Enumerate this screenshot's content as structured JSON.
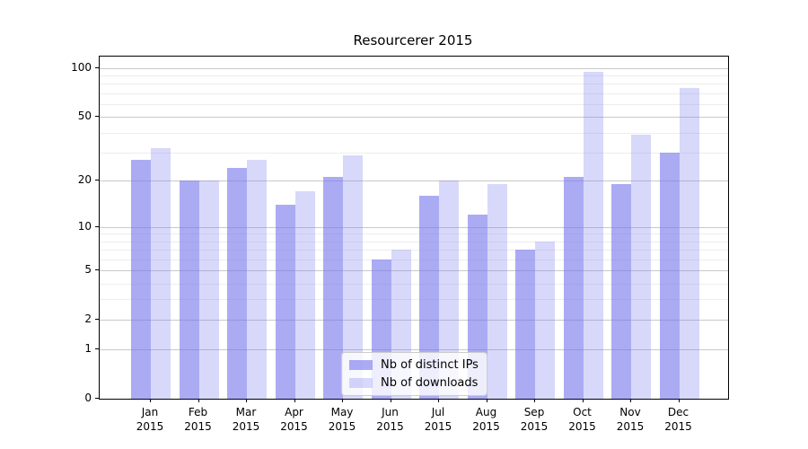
{
  "chart_data": {
    "type": "bar",
    "title": "Resourcerer 2015",
    "months": [
      "Jan",
      "Feb",
      "Mar",
      "Apr",
      "May",
      "Jun",
      "Jul",
      "Aug",
      "Sep",
      "Oct",
      "Nov",
      "Dec"
    ],
    "year": "2015",
    "categories": [
      "Jan 2015",
      "Feb 2015",
      "Mar 2015",
      "Apr 2015",
      "May 2015",
      "Jun 2015",
      "Jul 2015",
      "Aug 2015",
      "Sep 2015",
      "Oct 2015",
      "Nov 2015",
      "Dec 2015"
    ],
    "series": [
      {
        "name": "Nb of distinct IPs",
        "color": "#7777EE9E",
        "values": [
          27,
          20,
          24,
          14,
          21,
          6,
          16,
          12,
          7,
          21,
          19,
          30
        ]
      },
      {
        "name": "Nb of downloads",
        "color": "#7777EE4A",
        "values": [
          32,
          20,
          27,
          17,
          29,
          7,
          20,
          19,
          8,
          95,
          39,
          75
        ]
      }
    ],
    "xlabel": "",
    "ylabel": "",
    "yscale": "log1p",
    "ylim": [
      0,
      117
    ],
    "y_major_ticks": [
      0,
      1,
      2,
      5,
      10,
      20,
      50,
      100
    ],
    "y_minor_ticks": [
      3,
      4,
      6,
      7,
      8,
      9,
      30,
      40,
      60,
      70,
      80,
      90
    ],
    "grid": true,
    "legend_position": "lower-center"
  },
  "colors": {
    "background": "#ffffff",
    "axis": "#000000",
    "text": "#000000",
    "major_grid": "#c9c9c9",
    "minor_grid": "#ededed",
    "legend_border": "#cccccc"
  }
}
